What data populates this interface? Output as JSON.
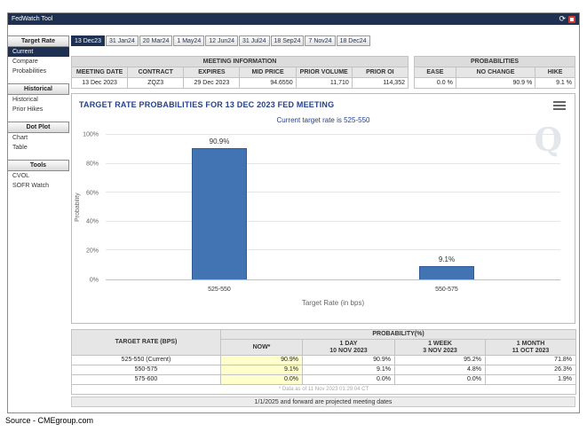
{
  "window": {
    "title": "FedWatch Tool"
  },
  "titlebar": {
    "refresh_icon": "⟳"
  },
  "source_caption": "Source - CMEgroup.com",
  "sidebar": {
    "sections": [
      {
        "header": "Target Rate",
        "items": [
          {
            "label": "Current",
            "selected": true
          },
          {
            "label": "Compare",
            "selected": false
          },
          {
            "label": "Probabilities",
            "selected": false
          }
        ]
      },
      {
        "header": "Historical",
        "items": [
          {
            "label": "Historical",
            "selected": false
          },
          {
            "label": "Prior Hikes",
            "selected": false
          }
        ]
      },
      {
        "header": "Dot Plot",
        "items": [
          {
            "label": "Chart",
            "selected": false
          },
          {
            "label": "Table",
            "selected": false
          }
        ]
      },
      {
        "header": "Tools",
        "items": [
          {
            "label": "CVOL",
            "selected": false
          },
          {
            "label": "SOFR Watch",
            "selected": false
          }
        ]
      }
    ]
  },
  "tabs": [
    {
      "label": "13 Dec23",
      "selected": true
    },
    {
      "label": "31 Jan24",
      "selected": false
    },
    {
      "label": "20 Mar24",
      "selected": false
    },
    {
      "label": "1 May24",
      "selected": false
    },
    {
      "label": "12 Jun24",
      "selected": false
    },
    {
      "label": "31 Jul24",
      "selected": false
    },
    {
      "label": "18 Sep24",
      "selected": false
    },
    {
      "label": "7 Nov24",
      "selected": false
    },
    {
      "label": "18 Dec24",
      "selected": false
    }
  ],
  "meeting_info": {
    "title": "MEETING INFORMATION",
    "columns": [
      "MEETING DATE",
      "CONTRACT",
      "EXPIRES",
      "MID PRICE",
      "PRIOR VOLUME",
      "PRIOR OI"
    ],
    "row": [
      "13 Dec 2023",
      "ZQZ3",
      "29 Dec 2023",
      "94.6550",
      "11,710",
      "114,352"
    ]
  },
  "probabilities_info": {
    "title": "PROBABILITIES",
    "columns": [
      "EASE",
      "NO CHANGE",
      "HIKE"
    ],
    "row": [
      "0.0 %",
      "90.9 %",
      "9.1 %"
    ]
  },
  "chart_data": {
    "type": "bar",
    "title": "TARGET RATE PROBABILITIES FOR 13 DEC 2023 FED MEETING",
    "subtitle": "Current target rate is 525-550",
    "categories": [
      "525-550",
      "550-575"
    ],
    "values": [
      90.9,
      9.1
    ],
    "bar_labels": [
      "90.9%",
      "9.1%"
    ],
    "xlabel": "Target Rate (in bps)",
    "ylabel": "Probability",
    "ylim": [
      0,
      100
    ],
    "yticks": [
      0,
      20,
      40,
      60,
      80,
      100
    ],
    "ytick_labels": [
      "0%",
      "20%",
      "40%",
      "60%",
      "80%",
      "100%"
    ],
    "bar_color": "#4273b2",
    "grid": true,
    "legend": "none",
    "watermark": "Q"
  },
  "probability_table": {
    "col0": "TARGET RATE (BPS)",
    "header_group": "PROBABILITY(%)",
    "columns": [
      "NOW*",
      "1 DAY\n10 NOV 2023",
      "1 WEEK\n3 NOV 2023",
      "1 MONTH\n11 OCT 2023"
    ],
    "rows": [
      {
        "label": "525-550 (Current)",
        "values": [
          "90.9%",
          "90.9%",
          "95.2%",
          "71.8%"
        ]
      },
      {
        "label": "550-575",
        "values": [
          "9.1%",
          "9.1%",
          "4.8%",
          "26.3%"
        ]
      },
      {
        "label": "575-600",
        "values": [
          "0.0%",
          "0.0%",
          "0.0%",
          "1.9%"
        ]
      }
    ],
    "footnote": "* Data as of 11 Nov 2023 01:29:04 CT",
    "note": "1/1/2025 and forward are projected meeting dates"
  }
}
